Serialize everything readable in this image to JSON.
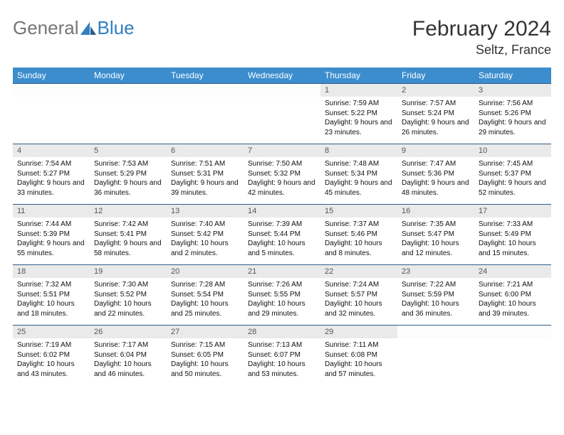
{
  "logo": {
    "text1": "General",
    "text2": "Blue"
  },
  "title": "February 2024",
  "location": "Seltz, France",
  "colors": {
    "header_bg": "#3b8dce",
    "header_fg": "#ffffff",
    "row_border": "#2f5b87",
    "daynum_bg": "#eaeaea",
    "logo_gray": "#757575",
    "logo_blue": "#2f7fc1",
    "text": "#111111",
    "page_bg": "#ffffff"
  },
  "font": {
    "month_size": 30,
    "location_size": 18,
    "daynames_size": 12,
    "daynum_size": 11,
    "cell_size": 10
  },
  "daynames": [
    "Sunday",
    "Monday",
    "Tuesday",
    "Wednesday",
    "Thursday",
    "Friday",
    "Saturday"
  ],
  "weeks": [
    [
      null,
      null,
      null,
      null,
      {
        "n": "1",
        "sr": "7:59 AM",
        "ss": "5:22 PM",
        "dl": "9 hours and 23 minutes."
      },
      {
        "n": "2",
        "sr": "7:57 AM",
        "ss": "5:24 PM",
        "dl": "9 hours and 26 minutes."
      },
      {
        "n": "3",
        "sr": "7:56 AM",
        "ss": "5:26 PM",
        "dl": "9 hours and 29 minutes."
      }
    ],
    [
      {
        "n": "4",
        "sr": "7:54 AM",
        "ss": "5:27 PM",
        "dl": "9 hours and 33 minutes."
      },
      {
        "n": "5",
        "sr": "7:53 AM",
        "ss": "5:29 PM",
        "dl": "9 hours and 36 minutes."
      },
      {
        "n": "6",
        "sr": "7:51 AM",
        "ss": "5:31 PM",
        "dl": "9 hours and 39 minutes."
      },
      {
        "n": "7",
        "sr": "7:50 AM",
        "ss": "5:32 PM",
        "dl": "9 hours and 42 minutes."
      },
      {
        "n": "8",
        "sr": "7:48 AM",
        "ss": "5:34 PM",
        "dl": "9 hours and 45 minutes."
      },
      {
        "n": "9",
        "sr": "7:47 AM",
        "ss": "5:36 PM",
        "dl": "9 hours and 48 minutes."
      },
      {
        "n": "10",
        "sr": "7:45 AM",
        "ss": "5:37 PM",
        "dl": "9 hours and 52 minutes."
      }
    ],
    [
      {
        "n": "11",
        "sr": "7:44 AM",
        "ss": "5:39 PM",
        "dl": "9 hours and 55 minutes."
      },
      {
        "n": "12",
        "sr": "7:42 AM",
        "ss": "5:41 PM",
        "dl": "9 hours and 58 minutes."
      },
      {
        "n": "13",
        "sr": "7:40 AM",
        "ss": "5:42 PM",
        "dl": "10 hours and 2 minutes."
      },
      {
        "n": "14",
        "sr": "7:39 AM",
        "ss": "5:44 PM",
        "dl": "10 hours and 5 minutes."
      },
      {
        "n": "15",
        "sr": "7:37 AM",
        "ss": "5:46 PM",
        "dl": "10 hours and 8 minutes."
      },
      {
        "n": "16",
        "sr": "7:35 AM",
        "ss": "5:47 PM",
        "dl": "10 hours and 12 minutes."
      },
      {
        "n": "17",
        "sr": "7:33 AM",
        "ss": "5:49 PM",
        "dl": "10 hours and 15 minutes."
      }
    ],
    [
      {
        "n": "18",
        "sr": "7:32 AM",
        "ss": "5:51 PM",
        "dl": "10 hours and 18 minutes."
      },
      {
        "n": "19",
        "sr": "7:30 AM",
        "ss": "5:52 PM",
        "dl": "10 hours and 22 minutes."
      },
      {
        "n": "20",
        "sr": "7:28 AM",
        "ss": "5:54 PM",
        "dl": "10 hours and 25 minutes."
      },
      {
        "n": "21",
        "sr": "7:26 AM",
        "ss": "5:55 PM",
        "dl": "10 hours and 29 minutes."
      },
      {
        "n": "22",
        "sr": "7:24 AM",
        "ss": "5:57 PM",
        "dl": "10 hours and 32 minutes."
      },
      {
        "n": "23",
        "sr": "7:22 AM",
        "ss": "5:59 PM",
        "dl": "10 hours and 36 minutes."
      },
      {
        "n": "24",
        "sr": "7:21 AM",
        "ss": "6:00 PM",
        "dl": "10 hours and 39 minutes."
      }
    ],
    [
      {
        "n": "25",
        "sr": "7:19 AM",
        "ss": "6:02 PM",
        "dl": "10 hours and 43 minutes."
      },
      {
        "n": "26",
        "sr": "7:17 AM",
        "ss": "6:04 PM",
        "dl": "10 hours and 46 minutes."
      },
      {
        "n": "27",
        "sr": "7:15 AM",
        "ss": "6:05 PM",
        "dl": "10 hours and 50 minutes."
      },
      {
        "n": "28",
        "sr": "7:13 AM",
        "ss": "6:07 PM",
        "dl": "10 hours and 53 minutes."
      },
      {
        "n": "29",
        "sr": "7:11 AM",
        "ss": "6:08 PM",
        "dl": "10 hours and 57 minutes."
      },
      null,
      null
    ]
  ],
  "labels": {
    "sunrise": "Sunrise: ",
    "sunset": "Sunset: ",
    "daylight": "Daylight: "
  }
}
